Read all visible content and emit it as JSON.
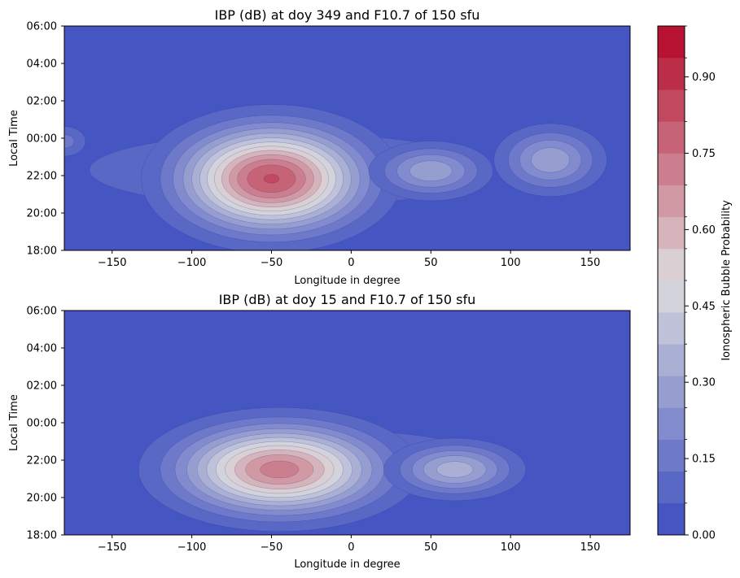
{
  "colors": {
    "low": "#3b4cc0",
    "mid": "#dddddd",
    "high": "#b40426",
    "contour_line": "#2a2a9a"
  },
  "colorbar": {
    "label": "Ionospheric Bubble Probability",
    "ticks": [
      "0.00",
      "0.15",
      "0.30",
      "0.45",
      "0.60",
      "0.75",
      "0.90"
    ],
    "tick_values": [
      0.0,
      0.15,
      0.3,
      0.45,
      0.6,
      0.75,
      0.9
    ],
    "levels": 16,
    "range": [
      0,
      1
    ]
  },
  "chart_data": [
    {
      "type": "heatmap",
      "subtype": "filled-contour",
      "title": "IBP (dB) at doy 349 and F10.7 of 150 sfu",
      "xlabel": "Longitude in degree",
      "ylabel": "Local Time",
      "xlim": [
        -180,
        175
      ],
      "ylim": [
        "18:00",
        "06:00"
      ],
      "x_ticks": [
        "−150",
        "−100",
        "−50",
        "0",
        "50",
        "100",
        "150"
      ],
      "x_tick_values": [
        -150,
        -100,
        -50,
        0,
        50,
        100,
        150
      ],
      "y_ticks": [
        "18:00",
        "20:00",
        "22:00",
        "00:00",
        "02:00",
        "04:00",
        "06:00"
      ],
      "y_tick_values": [
        18,
        20,
        22,
        24,
        26,
        28,
        30
      ],
      "peaks": [
        {
          "lon": -50,
          "local_time": "21:50",
          "value": 0.82
        },
        {
          "lon": 50,
          "local_time": "22:15",
          "value": 0.3
        },
        {
          "lon": 125,
          "local_time": "22:50",
          "value": 0.3
        },
        {
          "lon": -180,
          "local_time": "23:50",
          "value": 0.15
        }
      ]
    },
    {
      "type": "heatmap",
      "subtype": "filled-contour",
      "title": "IBP (dB) at doy 15 and F10.7 of 150 sfu",
      "xlabel": "Longitude in degree",
      "ylabel": "Local Time",
      "xlim": [
        -180,
        175
      ],
      "ylim": [
        "18:00",
        "06:00"
      ],
      "x_ticks": [
        "−150",
        "−100",
        "−50",
        "0",
        "50",
        "100",
        "150"
      ],
      "x_tick_values": [
        -150,
        -100,
        -50,
        0,
        50,
        100,
        150
      ],
      "y_ticks": [
        "18:00",
        "20:00",
        "22:00",
        "00:00",
        "02:00",
        "04:00",
        "06:00"
      ],
      "y_tick_values": [
        18,
        20,
        22,
        24,
        26,
        28,
        30
      ],
      "peaks": [
        {
          "lon": -45,
          "local_time": "21:30",
          "value": 0.72
        },
        {
          "lon": 65,
          "local_time": "21:30",
          "value": 0.35
        }
      ]
    }
  ]
}
